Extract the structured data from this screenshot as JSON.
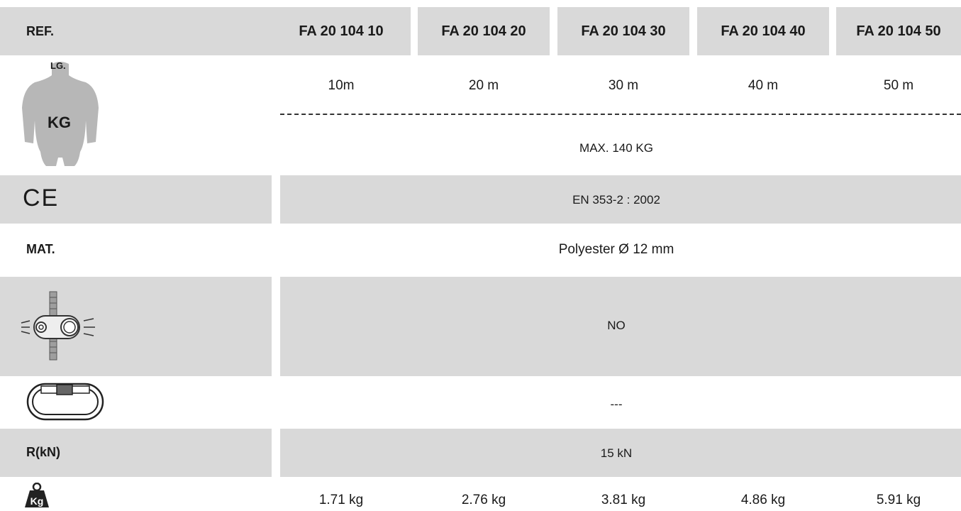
{
  "ref_label": "REF.",
  "references": [
    "FA 20 104 10",
    "FA 20 104 20",
    "FA 20 104 30",
    "FA 20 104 40",
    "FA 20 104 50"
  ],
  "length_icon_label": "LG.",
  "weight_icon_label": "KG",
  "lengths": [
    "10m",
    "20 m",
    "30 m",
    "40 m",
    "50 m"
  ],
  "max_load": "MAX. 140 KG",
  "ce_mark": "CE",
  "norm": "EN 353-2 : 2002",
  "mat_label": "MAT.",
  "material": "Polyester Ø 12 mm",
  "adjuster": "NO",
  "connector": "---",
  "strength_label": "R(kN)",
  "strength": "15 kN",
  "weight_icon": "Kg",
  "weights": [
    "1.71 kg",
    "2.76 kg",
    "3.81 kg",
    "4.86 kg",
    "5.91 kg"
  ],
  "colors": {
    "band": "#d9d9d9",
    "icon_gray": "#b7b7b7",
    "text": "#1a1a1a"
  }
}
